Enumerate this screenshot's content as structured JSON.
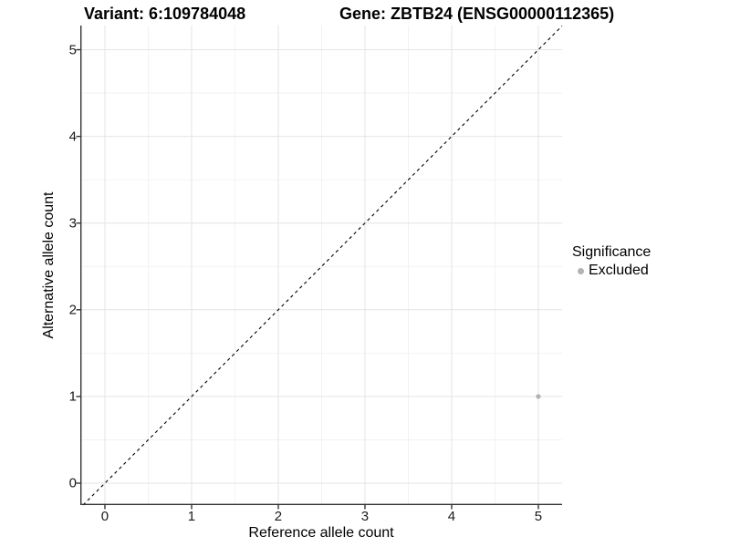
{
  "chart_data": {
    "type": "scatter",
    "title_left": "Variant: 6:109784048",
    "title_right": "Gene: ZBTB24 (ENSG00000112365)",
    "xlabel": "Reference allele count",
    "ylabel": "Alternative allele count",
    "xlim": [
      -0.284,
      5.274
    ],
    "ylim": [
      -0.2525,
      5.279
    ],
    "xticks": [
      0,
      1,
      2,
      3,
      4,
      5
    ],
    "yticks": [
      0,
      1,
      2,
      3,
      4,
      5
    ],
    "xminor": [
      0.5,
      1.5,
      2.5,
      3.5,
      4.5
    ],
    "yminor": [
      0.5,
      1.5,
      2.5,
      3.5,
      4.5
    ],
    "grid": "major-and-minor",
    "reference_line": {
      "slope": 1,
      "intercept": 0,
      "style": "dashed",
      "color": "#000000"
    },
    "series": [
      {
        "name": "Excluded",
        "color": "#b3b3b3",
        "point_radius": 2.6,
        "points": [
          {
            "x": 5,
            "y": 1
          }
        ]
      }
    ],
    "legend": {
      "title": "Significance",
      "position": "right",
      "entries": [
        {
          "label": "Excluded",
          "color": "#b3b3b3"
        }
      ]
    },
    "colors": {
      "grid_major": "#e4e4e4",
      "grid_minor": "#f2f2f2",
      "axis_line": "#333333",
      "tick_text": "#1a1a1a",
      "title_text": "#000000",
      "background": "#ffffff"
    }
  }
}
